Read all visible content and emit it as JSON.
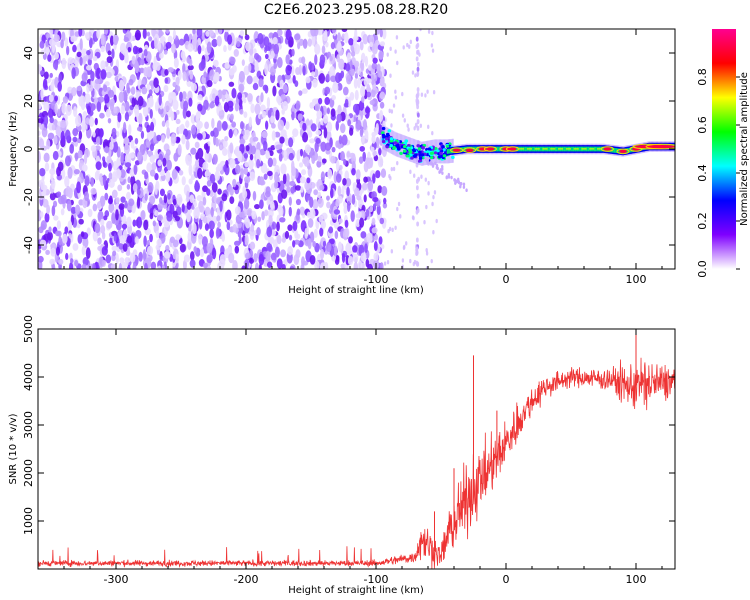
{
  "title": "C2E6.2023.295.08.28.R20",
  "chart_data": [
    {
      "type": "heatmap",
      "xlabel": "Height of straight line (km)",
      "ylabel": "Frequency (Hz)",
      "xlim": [
        -360,
        130
      ],
      "ylim": [
        -50,
        50
      ],
      "xticks": [
        -300,
        -200,
        -100,
        0,
        100
      ],
      "yticks": [
        -40,
        -20,
        0,
        20,
        40
      ],
      "noise_region_x": [
        -360,
        -93
      ],
      "signal": {
        "start_x": -95,
        "points": [
          {
            "x": -95,
            "y": 5
          },
          {
            "x": -85,
            "y": 2
          },
          {
            "x": -75,
            "y": 0
          },
          {
            "x": -65,
            "y": -2
          },
          {
            "x": -55,
            "y": -1
          },
          {
            "x": -45,
            "y": -1
          },
          {
            "x": -30,
            "y": 0
          },
          {
            "x": -20,
            "y": 0
          },
          {
            "x": 0,
            "y": 0
          },
          {
            "x": 50,
            "y": 0
          },
          {
            "x": 75,
            "y": 0
          },
          {
            "x": 90,
            "y": -1
          },
          {
            "x": 100,
            "y": 0
          },
          {
            "x": 110,
            "y": 1
          },
          {
            "x": 130,
            "y": 1
          }
        ]
      },
      "colorbar": {
        "label": "Normalized spectral amplitude",
        "range": [
          0,
          1
        ],
        "ticks": [
          0.0,
          0.2,
          0.4,
          0.6,
          0.8
        ],
        "tick_labels": [
          "0.0",
          "0.2",
          "0.4",
          "0.6",
          "0.8"
        ],
        "colors": [
          "#ffffff",
          "#7f00ff",
          "#0000ff",
          "#00ffff",
          "#00ff00",
          "#ffff00",
          "#ff0000",
          "#ff0090"
        ]
      }
    },
    {
      "type": "line",
      "xlabel": "Height of straight line (km)",
      "ylabel": "SNR (10 * v/v)",
      "xlim": [
        -360,
        130
      ],
      "ylim": [
        0,
        5000
      ],
      "xticks": [
        -300,
        -200,
        -100,
        0,
        100
      ],
      "yticks": [
        1000,
        2000,
        3000,
        4000,
        5000
      ],
      "color": "#ee3333",
      "envelope": [
        {
          "x": -360,
          "mean": 120,
          "noise": 60
        },
        {
          "x": -100,
          "mean": 120,
          "noise": 60
        },
        {
          "x": -70,
          "mean": 250,
          "noise": 120
        },
        {
          "x": -65,
          "mean": 650,
          "noise": 450
        },
        {
          "x": -58,
          "mean": 450,
          "noise": 350
        },
        {
          "x": -50,
          "mean": 250,
          "noise": 200
        },
        {
          "x": -45,
          "mean": 700,
          "noise": 500
        },
        {
          "x": -35,
          "mean": 1200,
          "noise": 700
        },
        {
          "x": -25,
          "mean": 1700,
          "noise": 700
        },
        {
          "x": -15,
          "mean": 2000,
          "noise": 600
        },
        {
          "x": 0,
          "mean": 2600,
          "noise": 500
        },
        {
          "x": 10,
          "mean": 3100,
          "noise": 400
        },
        {
          "x": 20,
          "mean": 3500,
          "noise": 300
        },
        {
          "x": 30,
          "mean": 3800,
          "noise": 250
        },
        {
          "x": 50,
          "mean": 4000,
          "noise": 180
        },
        {
          "x": 80,
          "mean": 3950,
          "noise": 250
        },
        {
          "x": 95,
          "mean": 3800,
          "noise": 450
        },
        {
          "x": 105,
          "mean": 3850,
          "noise": 550
        },
        {
          "x": 130,
          "mean": 3900,
          "noise": 300
        }
      ],
      "spikes": [
        {
          "x": -25,
          "y": 4450
        },
        {
          "x": -55,
          "y": 1200
        },
        {
          "x": -40,
          "y": 2100
        },
        {
          "x": -7,
          "y": 3300
        },
        {
          "x": 100,
          "y": 5000
        }
      ]
    }
  ]
}
